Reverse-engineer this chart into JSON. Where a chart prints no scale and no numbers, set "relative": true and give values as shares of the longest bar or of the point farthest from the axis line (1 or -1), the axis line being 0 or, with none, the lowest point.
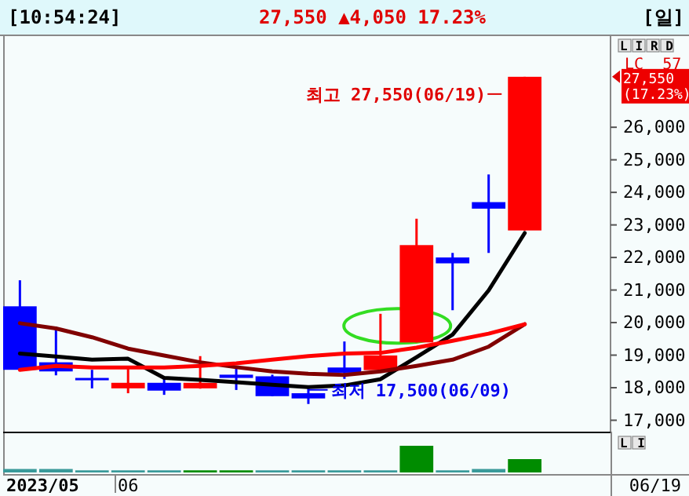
{
  "chart_data": [
    {
      "type": "candlestick",
      "title": "[10:54:24]",
      "subtitle": "27,550 ▲4,050 17.23%",
      "categories": [
        null,
        null,
        null,
        null,
        null,
        null,
        null,
        null,
        null,
        null,
        null,
        null,
        null,
        null,
        null
      ],
      "ohlc": [
        [
          20500,
          21300,
          18550,
          18550
        ],
        [
          18780,
          19880,
          18380,
          18500
        ],
        [
          18300,
          18550,
          17980,
          18280
        ],
        [
          17980,
          18590,
          17830,
          18150
        ],
        [
          18150,
          18260,
          17780,
          17910
        ],
        [
          17980,
          18970,
          17970,
          18150
        ],
        [
          18400,
          18590,
          17930,
          18300
        ],
        [
          18350,
          18400,
          17740,
          17740
        ],
        [
          17830,
          18020,
          17500,
          17670
        ],
        [
          18620,
          19420,
          18270,
          18460
        ],
        [
          18540,
          20270,
          18540,
          18990
        ],
        [
          19390,
          23190,
          19390,
          22380
        ],
        [
          22000,
          22140,
          20380,
          21820
        ],
        [
          23700,
          24550,
          22140,
          23500
        ],
        [
          22830,
          27550,
          22830,
          27550
        ]
      ],
      "colors": [
        "#0000ff",
        "#0000ff",
        "#0000ff",
        "#ff0000",
        "#0000ff",
        "#ff0000",
        "#0000ff",
        "#0000ff",
        "#0000ff",
        "#0000ff",
        "#ff0000",
        "#ff0000",
        "#0000ff",
        "#0000ff",
        "#ff0000"
      ],
      "series": [
        {
          "type": "line",
          "color": "#000000",
          "values": [
            19050,
            18960,
            18860,
            18890,
            18300,
            18240,
            18170,
            18090,
            18020,
            18070,
            18260,
            18940,
            19630,
            20990,
            22750
          ]
        },
        {
          "type": "line",
          "color": "#800000",
          "values": [
            19980,
            19820,
            19550,
            19200,
            18990,
            18780,
            18630,
            18500,
            18430,
            18390,
            18500,
            18670,
            18860,
            19260,
            19950
          ]
        },
        {
          "type": "line",
          "color": "#ff0000",
          "values": [
            18550,
            18670,
            18620,
            18620,
            18620,
            18670,
            18750,
            18860,
            18970,
            19050,
            19070,
            19230,
            19440,
            19660,
            19950
          ]
        }
      ],
      "ylim": [
        16650,
        28800
      ],
      "yticks": [
        {
          "value": 17000,
          "label": "17,000"
        },
        {
          "value": 18000,
          "label": "18,000"
        },
        {
          "value": 19000,
          "label": "19,000"
        },
        {
          "value": 20000,
          "label": "20,000"
        },
        {
          "value": 21000,
          "label": "21,000"
        },
        {
          "value": 22000,
          "label": "22,000"
        },
        {
          "value": 23000,
          "label": "23,000"
        },
        {
          "value": 24000,
          "label": "24,000"
        },
        {
          "value": 25000,
          "label": "25,000"
        },
        {
          "value": 26000,
          "label": "26,000"
        }
      ],
      "tick_labels": "y",
      "annotations": [
        "[일]",
        "LIRD",
        "LC  57",
        "27,550 (17.23%)",
        "최고 27,550(06/19)",
        "최저 17,500(06/09)"
      ]
    },
    {
      "type": "bar",
      "relative": true,
      "categories": [
        null,
        null,
        null,
        null,
        null,
        null,
        null,
        null,
        null,
        null,
        null,
        null,
        null,
        null,
        null
      ],
      "values": [
        0.13,
        0.13,
        0.08,
        0.08,
        0.08,
        0.08,
        0.08,
        0.08,
        0.08,
        0.08,
        0.08,
        1,
        0.08,
        0.13,
        0.5
      ],
      "colors": [
        "#3a9a9a",
        "#3a9a9a",
        "#3a9a9a",
        "#3a9a9a",
        "#3a9a9a",
        "#008c00",
        "#008c00",
        "#3a9a9a",
        "#3a9a9a",
        "#3a9a9a",
        "#3a9a9a",
        "#008c00",
        "#3a9a9a",
        "#3a9a9a",
        "#008c00"
      ],
      "tick_labels": false,
      "annotations": [
        "LI",
        "2023/05",
        "06",
        "06/19"
      ]
    }
  ]
}
